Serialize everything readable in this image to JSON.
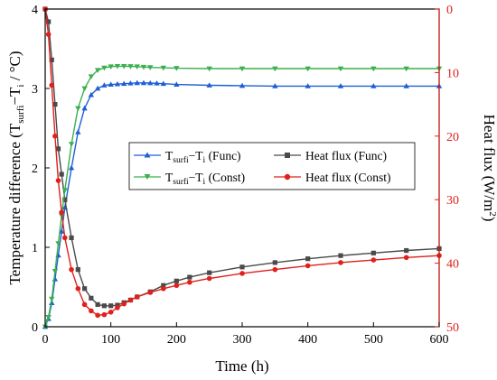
{
  "chart_data": {
    "type": "line",
    "xlabel": "Time (h)",
    "xlim": [
      0,
      600
    ],
    "xticks": [
      0,
      100,
      200,
      300,
      400,
      500,
      600
    ],
    "left_axis": {
      "label_main": "Temperature difference (T",
      "label_sub1": "surfi",
      "label_mid": "−T",
      "label_sub2": "i",
      "label_end": " / °C)",
      "ylim": [
        0,
        4
      ],
      "ticks": [
        0,
        1,
        2,
        3,
        4
      ]
    },
    "right_axis": {
      "label_main": "Heat flux (W/m",
      "label_sup": "2",
      "label_end": ")",
      "ylim": [
        0,
        -50
      ],
      "ticks": [
        0,
        -10,
        -20,
        -30,
        -40,
        -50
      ],
      "tick_labels": [
        "0",
        "10",
        "20",
        "30",
        "40",
        "50"
      ],
      "color": "#e0201b"
    },
    "legend": {
      "placement": "center-right",
      "entries": [
        {
          "pre": "T",
          "sub1": "surfi",
          "mid": "−T",
          "sub2": "i",
          "post": " (Func)"
        },
        {
          "pre": "Heat flux (Func)"
        },
        {
          "pre": "T",
          "sub1": "surfi",
          "mid": "−T",
          "sub2": "i",
          "post": " (Const)"
        },
        {
          "pre": "Heat flux (Const)"
        }
      ]
    },
    "series": [
      {
        "axis": "left",
        "color": "#1f5fd6",
        "marker": "triangle-up",
        "x": [
          0,
          5,
          10,
          15,
          20,
          25,
          30,
          40,
          50,
          60,
          70,
          80,
          90,
          100,
          110,
          120,
          130,
          140,
          150,
          160,
          170,
          180,
          200,
          250,
          300,
          350,
          400,
          450,
          500,
          550,
          600
        ],
        "y": [
          0,
          0.1,
          0.3,
          0.6,
          0.9,
          1.2,
          1.5,
          2.0,
          2.45,
          2.75,
          2.92,
          3.0,
          3.04,
          3.05,
          3.055,
          3.06,
          3.065,
          3.07,
          3.07,
          3.068,
          3.065,
          3.06,
          3.05,
          3.04,
          3.035,
          3.03,
          3.03,
          3.03,
          3.03,
          3.03,
          3.03
        ]
      },
      {
        "axis": "right",
        "color": "#4a4a4a",
        "marker": "square",
        "x": [
          0,
          5,
          10,
          15,
          20,
          25,
          30,
          40,
          50,
          60,
          70,
          80,
          90,
          100,
          110,
          120,
          130,
          140,
          160,
          180,
          200,
          220,
          250,
          300,
          350,
          400,
          450,
          500,
          550,
          600
        ],
        "y": [
          0,
          -2,
          -8,
          -15,
          -22,
          -26,
          -30,
          -36,
          -41,
          -44,
          -45.5,
          -46.5,
          -46.7,
          -46.7,
          -46.6,
          -46.2,
          -45.8,
          -45.3,
          -44.5,
          -43.5,
          -42.8,
          -42.2,
          -41.5,
          -40.6,
          -39.9,
          -39.3,
          -38.8,
          -38.4,
          -38.0,
          -37.7
        ]
      },
      {
        "axis": "left",
        "color": "#3bb04f",
        "marker": "triangle-down",
        "x": [
          0,
          5,
          10,
          15,
          20,
          25,
          30,
          40,
          50,
          60,
          70,
          80,
          90,
          100,
          110,
          120,
          130,
          140,
          150,
          160,
          180,
          200,
          250,
          300,
          350,
          400,
          450,
          500,
          550,
          600
        ],
        "y": [
          0,
          0.12,
          0.35,
          0.7,
          1.05,
          1.4,
          1.72,
          2.3,
          2.75,
          3.0,
          3.15,
          3.23,
          3.26,
          3.275,
          3.28,
          3.28,
          3.278,
          3.275,
          3.27,
          3.265,
          3.26,
          3.255,
          3.25,
          3.25,
          3.25,
          3.25,
          3.25,
          3.25,
          3.25,
          3.25
        ]
      },
      {
        "axis": "right",
        "color": "#e0201b",
        "marker": "circle",
        "x": [
          0,
          5,
          10,
          15,
          20,
          25,
          30,
          40,
          50,
          60,
          70,
          80,
          90,
          100,
          110,
          120,
          130,
          140,
          160,
          180,
          200,
          220,
          250,
          300,
          350,
          400,
          450,
          500,
          550,
          600
        ],
        "y": [
          0,
          -4,
          -12,
          -20,
          -27,
          -32,
          -36,
          -41,
          -44,
          -46.5,
          -47.5,
          -48.2,
          -48.1,
          -47.7,
          -47.0,
          -46.4,
          -45.8,
          -45.3,
          -44.6,
          -44.0,
          -43.5,
          -43.0,
          -42.4,
          -41.6,
          -41.0,
          -40.4,
          -39.9,
          -39.5,
          -39.1,
          -38.8
        ]
      }
    ]
  }
}
